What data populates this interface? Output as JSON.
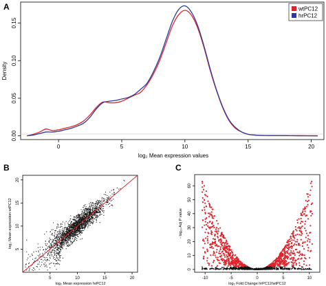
{
  "panels": {
    "a_letter": "A",
    "b_letter": "B",
    "c_letter": "C"
  },
  "colors": {
    "wt": "#e0242b",
    "hr": "#2e3a9a",
    "diag": "#e0242b",
    "scatter_b": "#111111",
    "volcano_sig": "#e0242b",
    "volcano_ns": "#111111"
  },
  "chart_data": [
    {
      "id": "A",
      "type": "line",
      "xlabel": "log₂ Mean expression values",
      "ylabel": "Density",
      "xlim": [
        -3,
        21
      ],
      "ylim": [
        -0.005,
        0.178
      ],
      "xticks": [
        "0",
        "5",
        "10",
        "15",
        "20"
      ],
      "xtick_values": [
        0,
        5,
        10,
        15,
        20
      ],
      "yticks": [
        "0.00",
        "0.05",
        "0.10",
        "0.15"
      ],
      "ytick_values": [
        0,
        0.05,
        0.1,
        0.15
      ],
      "legend": "top-right",
      "series": [
        {
          "name": "wtPC12",
          "color": "#e0242b",
          "x": [
            -2.5,
            -2,
            -1.5,
            -1,
            -0.5,
            0,
            0.5,
            1,
            1.5,
            2,
            2.5,
            3,
            3.5,
            4,
            4.5,
            5,
            5.5,
            6,
            6.5,
            7,
            7.5,
            8,
            8.5,
            9,
            9.5,
            10,
            10.5,
            11,
            11.5,
            12,
            12.5,
            13,
            13.5,
            14,
            14.5,
            15,
            15.5,
            16,
            17,
            18,
            19,
            20.5
          ],
          "y": [
            0,
            0.002,
            0.005,
            0.009,
            0.007,
            0.008,
            0.01,
            0.012,
            0.015,
            0.02,
            0.028,
            0.038,
            0.045,
            0.044,
            0.044,
            0.046,
            0.05,
            0.054,
            0.058,
            0.068,
            0.082,
            0.1,
            0.123,
            0.146,
            0.161,
            0.167,
            0.161,
            0.144,
            0.118,
            0.087,
            0.06,
            0.037,
            0.02,
            0.01,
            0.005,
            0.002,
            0.001,
            0.0005,
            0.0003,
            0.0002,
            0.0001,
            0
          ]
        },
        {
          "name": "hrPC12",
          "color": "#2e3a9a",
          "x": [
            -2.5,
            -2,
            -1.5,
            -1,
            -0.5,
            0,
            0.5,
            1,
            1.5,
            2,
            2.5,
            3,
            3.5,
            4,
            4.5,
            5,
            5.5,
            6,
            6.5,
            7,
            7.5,
            8,
            8.5,
            9,
            9.5,
            10,
            10.5,
            11,
            11.5,
            12,
            12.5,
            13,
            13.5,
            14,
            14.5,
            15,
            15.5,
            16,
            17,
            18,
            19,
            20.5
          ],
          "y": [
            0,
            0.001,
            0.003,
            0.005,
            0.005,
            0.006,
            0.008,
            0.01,
            0.013,
            0.017,
            0.025,
            0.036,
            0.044,
            0.046,
            0.047,
            0.049,
            0.051,
            0.055,
            0.062,
            0.07,
            0.085,
            0.104,
            0.128,
            0.152,
            0.168,
            0.173,
            0.165,
            0.147,
            0.12,
            0.089,
            0.061,
            0.038,
            0.021,
            0.011,
            0.005,
            0.002,
            0.001,
            0.0005,
            0.0003,
            0.0002,
            0.0001,
            0
          ]
        }
      ]
    },
    {
      "id": "B",
      "type": "scatter",
      "xlabel": "log₂ Mean expression hrPC12",
      "ylabel": "log₂ Mean expression wtPC12",
      "xlim": [
        0,
        21
      ],
      "ylim": [
        0,
        21
      ],
      "xticks": [
        "5",
        "10",
        "15",
        "20"
      ],
      "xtick_values": [
        5,
        10,
        15,
        20
      ],
      "yticks": [
        "5",
        "10",
        "15",
        "20"
      ],
      "ytick_values": [
        5,
        10,
        15,
        20
      ],
      "point_count": 2200,
      "x_center": 10,
      "x_sd": 2.6,
      "y_residual_sd": 1.1,
      "color": "#111111",
      "reference_line": {
        "slope": 1,
        "intercept": 0,
        "color": "#e0242b"
      }
    },
    {
      "id": "C",
      "type": "scatter",
      "xlabel": "log₂ Fold Change hrPC12/wtPC12",
      "ylabel": "- log₁₀ Adj P value",
      "xlim": [
        -12,
        12
      ],
      "ylim": [
        -2,
        68
      ],
      "xticks": [
        "-10",
        "-5",
        "0",
        "5",
        "10"
      ],
      "xtick_values": [
        -10,
        -5,
        0,
        5,
        10
      ],
      "yticks": [
        "0",
        "10",
        "20",
        "30",
        "40",
        "50",
        "60"
      ],
      "ytick_values": [
        0,
        10,
        20,
        30,
        40,
        50,
        60
      ],
      "point_count": 1600,
      "envelope_coef": 0.6,
      "envelope_exp": 2,
      "significant_color": "#e0242b",
      "non_significant_color": "#111111",
      "significance_threshold": 2
    }
  ]
}
